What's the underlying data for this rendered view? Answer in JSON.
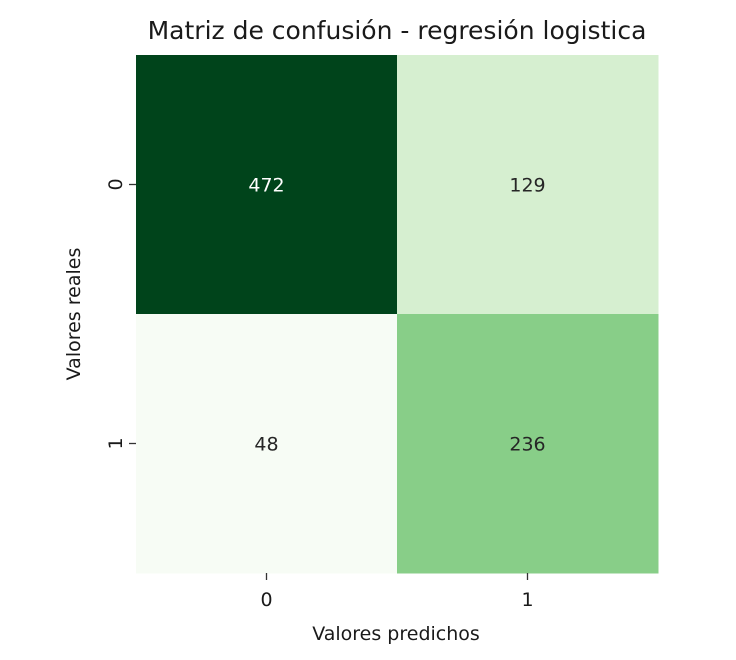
{
  "chart_data": {
    "type": "heatmap",
    "title": "Matriz de confusión - regresión logistica",
    "xlabel": "Valores predichos",
    "ylabel": "Valores reales",
    "x_categories": [
      "0",
      "1"
    ],
    "y_categories": [
      "0",
      "1"
    ],
    "values": [
      [
        472,
        129
      ],
      [
        48,
        236
      ]
    ],
    "colormap": "Greens",
    "colorbar": false,
    "cell_colors": [
      [
        "#00441b",
        "#d6efd0"
      ],
      [
        "#f7fcf5",
        "#88ce88"
      ]
    ],
    "label_colors": [
      [
        "#ffffff",
        "#262626"
      ],
      [
        "#262626",
        "#262626"
      ]
    ]
  }
}
